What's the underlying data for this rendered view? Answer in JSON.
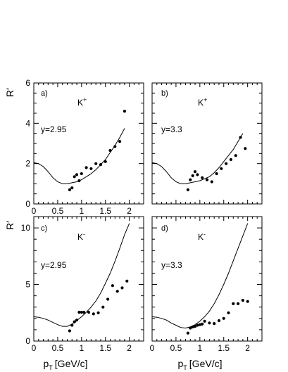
{
  "figure": {
    "y_axis_symbol": "R′",
    "x_axis_label": "p",
    "x_axis_sub": "T",
    "x_axis_unit": "[GeV/c]"
  },
  "chart_data": [
    {
      "type": "scatter",
      "panel_label": "a)",
      "particle": "K",
      "charge": "+",
      "rapidity_label": "y=2.95",
      "xlim": [
        0,
        2.3
      ],
      "ylim": [
        0,
        6
      ],
      "xticks": [
        "0",
        "0.5",
        "1",
        "1.5",
        "2"
      ],
      "yticks": [
        "0",
        "2",
        "4",
        "6"
      ],
      "points": {
        "x": [
          0.75,
          0.8,
          0.85,
          0.9,
          0.95,
          1.0,
          1.1,
          1.2,
          1.3,
          1.4,
          1.5,
          1.6,
          1.7,
          1.8,
          1.9
        ],
        "y": [
          0.7,
          0.8,
          1.35,
          1.45,
          1.15,
          1.5,
          1.8,
          1.75,
          2.0,
          1.95,
          2.1,
          2.65,
          2.85,
          3.1,
          4.6
        ]
      },
      "curve": {
        "x": [
          0,
          0.1,
          0.2,
          0.3,
          0.4,
          0.5,
          0.6,
          0.7,
          0.8,
          0.9,
          1.0,
          1.1,
          1.2,
          1.3,
          1.4,
          1.5,
          1.6,
          1.7,
          1.8,
          1.9
        ],
        "y": [
          2.05,
          2.0,
          1.85,
          1.6,
          1.3,
          1.1,
          1.0,
          1.0,
          1.05,
          1.1,
          1.2,
          1.35,
          1.5,
          1.7,
          1.95,
          2.2,
          2.55,
          2.9,
          3.3,
          3.75
        ]
      }
    },
    {
      "type": "scatter",
      "panel_label": "b)",
      "particle": "K",
      "charge": "+",
      "rapidity_label": "y=3.3",
      "xlim": [
        0,
        2.3
      ],
      "ylim": [
        0,
        6
      ],
      "xticks": [
        "",
        "",
        "",
        "",
        ""
      ],
      "yticks": [
        "",
        "",
        "",
        ""
      ],
      "points": {
        "x": [
          0.75,
          0.8,
          0.85,
          0.9,
          0.95,
          1.05,
          1.15,
          1.25,
          1.35,
          1.45,
          1.55,
          1.65,
          1.75,
          1.85,
          1.95
        ],
        "y": [
          0.7,
          1.2,
          1.4,
          1.6,
          1.45,
          1.3,
          1.2,
          1.1,
          1.5,
          1.75,
          2.0,
          2.2,
          2.4,
          3.3,
          2.75
        ]
      },
      "curve": {
        "x": [
          0,
          0.1,
          0.2,
          0.3,
          0.4,
          0.5,
          0.6,
          0.7,
          0.8,
          0.9,
          1.0,
          1.1,
          1.2,
          1.3,
          1.4,
          1.5,
          1.6,
          1.7,
          1.8,
          1.9
        ],
        "y": [
          2.05,
          2.0,
          1.85,
          1.6,
          1.3,
          1.1,
          1.0,
          1.0,
          1.05,
          1.1,
          1.15,
          1.25,
          1.35,
          1.55,
          1.8,
          2.1,
          2.4,
          2.7,
          3.1,
          3.5
        ]
      }
    },
    {
      "type": "scatter",
      "panel_label": "c)",
      "particle": "K",
      "charge": "-",
      "rapidity_label": "y=2.95",
      "xlim": [
        0,
        2.3
      ],
      "ylim": [
        0,
        11
      ],
      "xticks": [
        "0",
        "0.5",
        "1",
        "1.5",
        "2"
      ],
      "yticks": [
        "0",
        "5",
        "10"
      ],
      "points": {
        "x": [
          0.75,
          0.8,
          0.85,
          0.9,
          0.95,
          1.0,
          1.05,
          1.15,
          1.25,
          1.35,
          1.45,
          1.55,
          1.65,
          1.75,
          1.85,
          1.95
        ],
        "y": [
          0.9,
          1.4,
          1.7,
          1.85,
          2.55,
          2.55,
          2.55,
          2.55,
          2.4,
          2.5,
          3.0,
          3.7,
          4.9,
          4.4,
          4.7,
          5.3
        ]
      },
      "curve": {
        "x": [
          0,
          0.1,
          0.2,
          0.3,
          0.4,
          0.5,
          0.6,
          0.7,
          0.8,
          0.9,
          1.0,
          1.1,
          1.2,
          1.3,
          1.4,
          1.5,
          1.6,
          1.7,
          1.8,
          1.9,
          2.0
        ],
        "y": [
          2.15,
          2.1,
          2.0,
          1.85,
          1.65,
          1.45,
          1.3,
          1.3,
          1.5,
          1.8,
          2.15,
          2.55,
          3.0,
          3.55,
          4.25,
          5.1,
          6.0,
          7.05,
          8.2,
          9.4,
          10.4
        ]
      }
    },
    {
      "type": "scatter",
      "panel_label": "d)",
      "particle": "K",
      "charge": "-",
      "rapidity_label": "y=3.3",
      "xlim": [
        0,
        2.3
      ],
      "ylim": [
        0,
        11
      ],
      "xticks": [
        "0",
        "0.5",
        "1",
        "1.5",
        "2"
      ],
      "yticks": [
        "",
        "",
        ""
      ],
      "points": {
        "x": [
          0.75,
          0.8,
          0.85,
          0.9,
          0.95,
          1.0,
          1.05,
          1.1,
          1.2,
          1.3,
          1.4,
          1.5,
          1.6,
          1.7,
          1.8,
          1.9,
          2.0
        ],
        "y": [
          0.7,
          1.15,
          1.25,
          1.3,
          1.4,
          1.45,
          1.5,
          1.75,
          1.6,
          1.55,
          1.8,
          2.0,
          2.5,
          3.3,
          3.3,
          3.6,
          3.5
        ]
      },
      "curve": {
        "x": [
          0,
          0.1,
          0.2,
          0.3,
          0.4,
          0.5,
          0.6,
          0.7,
          0.8,
          0.9,
          1.0,
          1.1,
          1.2,
          1.3,
          1.4,
          1.5,
          1.6,
          1.7,
          1.8,
          1.9,
          2.0
        ],
        "y": [
          2.15,
          2.1,
          2.0,
          1.85,
          1.6,
          1.4,
          1.2,
          1.15,
          1.25,
          1.45,
          1.75,
          2.15,
          2.65,
          3.3,
          4.1,
          5.0,
          6.0,
          7.1,
          8.2,
          9.3,
          10.4
        ]
      }
    }
  ]
}
